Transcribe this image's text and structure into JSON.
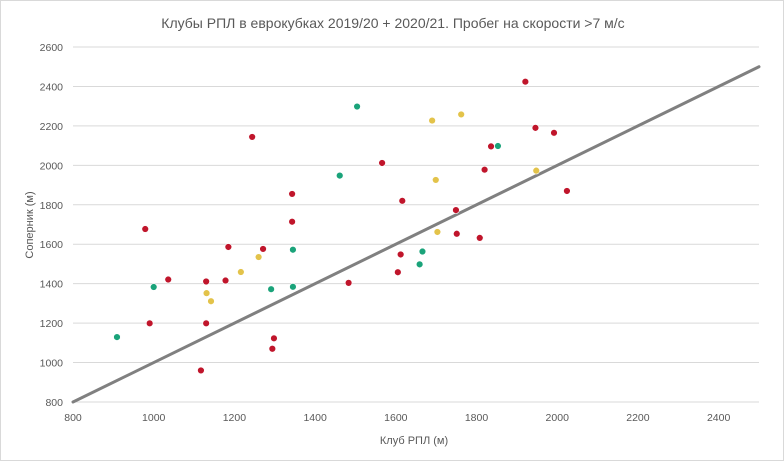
{
  "chart_data": {
    "type": "scatter",
    "title": "Клубы РПЛ в еврокубках 2019/20 + 2020/21. Пробег на скорости >7 м/с",
    "xlabel": "Клуб РПЛ (м)",
    "ylabel": "Соперник (м)",
    "xlim": [
      800,
      2500
    ],
    "ylim": [
      800,
      2600
    ],
    "xticks": [
      "800",
      "1000",
      "1200",
      "1400",
      "1600",
      "1800",
      "2000",
      "2200",
      "2400"
    ],
    "yticks": [
      "800",
      "1000",
      "1200",
      "1400",
      "1600",
      "1800",
      "2000",
      "2200",
      "2400",
      "2600"
    ],
    "grid": "horizontal",
    "legend": "none",
    "reference_line": {
      "from": [
        800,
        800
      ],
      "to": [
        2500,
        2500
      ],
      "color": "#808080"
    },
    "series": [
      {
        "color": "#c0152b",
        "points": [
          [
            979,
            1677
          ],
          [
            990,
            1199
          ],
          [
            1036,
            1421
          ],
          [
            1117,
            960
          ],
          [
            1130,
            1411
          ],
          [
            1130,
            1199
          ],
          [
            1178,
            1416
          ],
          [
            1185,
            1586
          ],
          [
            1244,
            2144
          ],
          [
            1271,
            1576
          ],
          [
            1294,
            1070
          ],
          [
            1298,
            1123
          ],
          [
            1343,
            1855
          ],
          [
            1343,
            1714
          ],
          [
            1483,
            1404
          ],
          [
            1566,
            2012
          ],
          [
            1605,
            1458
          ],
          [
            1612,
            1548
          ],
          [
            1616,
            1820
          ],
          [
            1749,
            1773
          ],
          [
            1751,
            1653
          ],
          [
            1808,
            1632
          ],
          [
            1820,
            1978
          ],
          [
            1836,
            2096
          ],
          [
            1921,
            2424
          ],
          [
            1946,
            2190
          ],
          [
            1992,
            2165
          ],
          [
            2024,
            1870
          ]
        ]
      },
      {
        "color": "#e3c34a",
        "points": [
          [
            1131,
            1352
          ],
          [
            1142,
            1311
          ],
          [
            1216,
            1459
          ],
          [
            1260,
            1535
          ],
          [
            1690,
            2227
          ],
          [
            1699,
            1926
          ],
          [
            1703,
            1662
          ],
          [
            1762,
            2258
          ],
          [
            1948,
            1973
          ]
        ]
      },
      {
        "color": "#1aa37a",
        "points": [
          [
            909,
            1129
          ],
          [
            1000,
            1383
          ],
          [
            1291,
            1372
          ],
          [
            1345,
            1572
          ],
          [
            1345,
            1384
          ],
          [
            1461,
            1948
          ],
          [
            1504,
            2298
          ],
          [
            1659,
            1498
          ],
          [
            1666,
            1563
          ],
          [
            1853,
            2098
          ]
        ]
      }
    ]
  }
}
